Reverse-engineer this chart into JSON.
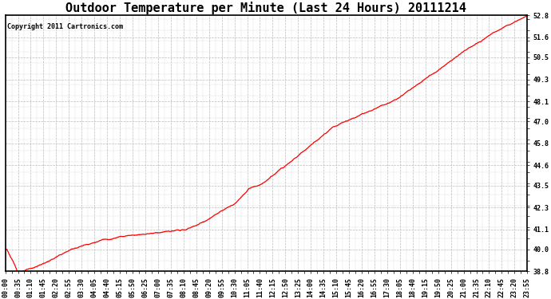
{
  "title": "Outdoor Temperature per Minute (Last 24 Hours) 20111214",
  "copyright_text": "Copyright 2011 Cartronics.com",
  "line_color": "#ff0000",
  "background_color": "#ffffff",
  "plot_bg_color": "#ffffff",
  "grid_color": "#bbbbbb",
  "ylim": [
    38.8,
    52.8
  ],
  "yticks": [
    38.8,
    40.0,
    41.1,
    42.3,
    43.5,
    44.6,
    45.8,
    47.0,
    48.1,
    49.3,
    50.5,
    51.6,
    52.8
  ],
  "xtick_labels": [
    "00:00",
    "00:35",
    "01:10",
    "01:45",
    "02:20",
    "02:55",
    "03:30",
    "04:05",
    "04:40",
    "05:15",
    "05:50",
    "06:25",
    "07:00",
    "07:35",
    "08:10",
    "08:45",
    "09:20",
    "09:55",
    "10:30",
    "11:05",
    "11:40",
    "12:15",
    "12:50",
    "13:25",
    "14:00",
    "14:35",
    "15:10",
    "15:45",
    "16:20",
    "16:55",
    "17:30",
    "18:05",
    "18:40",
    "19:15",
    "19:50",
    "20:25",
    "21:00",
    "21:35",
    "22:10",
    "22:45",
    "23:20",
    "23:55"
  ],
  "title_fontsize": 11,
  "copyright_fontsize": 6,
  "tick_fontsize": 6,
  "line_width": 0.9
}
